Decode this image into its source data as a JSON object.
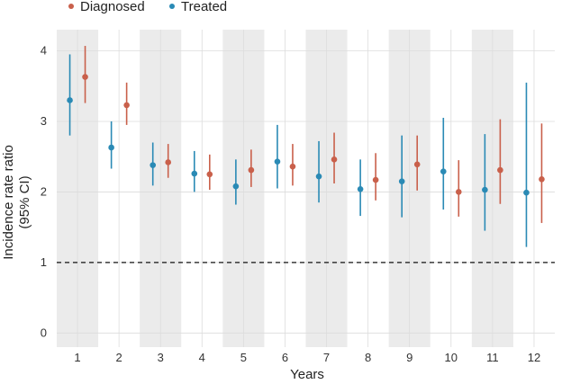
{
  "chart_data": {
    "type": "scatter",
    "subtype": "point-range",
    "title": "",
    "xlabel": "Years",
    "ylabel_line1": "Incidence rate ratio",
    "ylabel_line2": "(95% CI)",
    "categories": [
      "1",
      "2",
      "3",
      "4",
      "5",
      "6",
      "7",
      "8",
      "9",
      "10",
      "11",
      "12"
    ],
    "ylim": [
      -0.2,
      4.3
    ],
    "yticks": [
      0,
      1,
      2,
      3,
      4
    ],
    "reference_line": 1,
    "legend_position": "top-left",
    "shaded_categories": [
      "1",
      "3",
      "5",
      "7",
      "9",
      "11"
    ],
    "series": [
      {
        "name": "Treated",
        "color": "#2a8ab5",
        "values": [
          3.3,
          2.63,
          2.38,
          2.26,
          2.08,
          2.43,
          2.22,
          2.04,
          2.15,
          2.29,
          2.03,
          1.99
        ],
        "lower": [
          2.8,
          2.33,
          2.09,
          2.0,
          1.82,
          2.05,
          1.85,
          1.66,
          1.64,
          1.75,
          1.45,
          1.22
        ],
        "upper": [
          3.95,
          3.0,
          2.7,
          2.58,
          2.46,
          2.95,
          2.72,
          2.46,
          2.8,
          3.05,
          2.82,
          3.55
        ]
      },
      {
        "name": "Diagnosed",
        "color": "#c9604b",
        "values": [
          3.63,
          3.23,
          2.42,
          2.25,
          2.31,
          2.36,
          2.46,
          2.17,
          2.39,
          2.0,
          2.31,
          2.18
        ],
        "lower": [
          3.26,
          2.95,
          2.2,
          2.03,
          2.07,
          2.09,
          2.12,
          1.88,
          2.02,
          1.65,
          1.83,
          1.56
        ],
        "upper": [
          4.07,
          3.55,
          2.68,
          2.53,
          2.6,
          2.68,
          2.84,
          2.55,
          2.8,
          2.45,
          3.03,
          2.97
        ]
      }
    ]
  }
}
